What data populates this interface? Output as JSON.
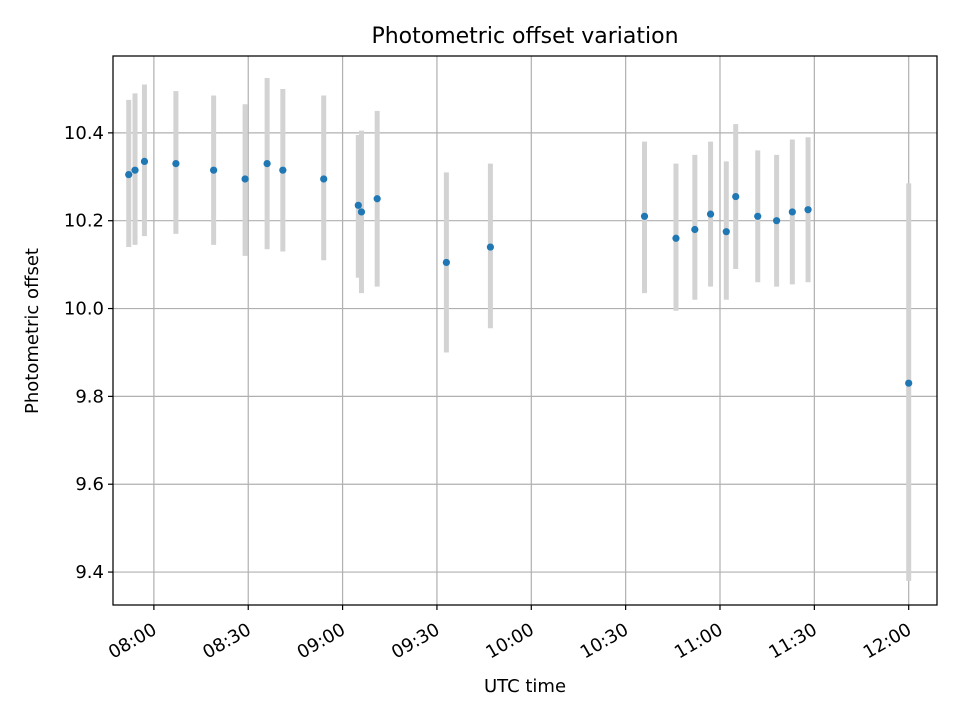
{
  "chart_data": {
    "type": "scatter",
    "title": "Photometric offset variation",
    "xlabel": "UTC time",
    "ylabel": "Photometric offset",
    "x_unit": "time of day (HH:MM, UTC)",
    "xlim": [
      "07:47",
      "12:09"
    ],
    "ylim": [
      9.325,
      10.575
    ],
    "xticks": [
      "08:00",
      "08:30",
      "09:00",
      "09:30",
      "10:00",
      "10:30",
      "11:00",
      "11:30",
      "12:00"
    ],
    "yticks": [
      "9.4",
      "9.6",
      "9.8",
      "10.0",
      "10.2",
      "10.4"
    ],
    "grid": true,
    "legend": false,
    "colors": {
      "points": "#1f77b4",
      "errorbars": "#d3d3d3",
      "grid": "#b0b0b0"
    },
    "series": [
      {
        "points": [
          {
            "x": "07:52",
            "y": 10.305,
            "ylow": 10.14,
            "yhigh": 10.475
          },
          {
            "x": "07:54",
            "y": 10.315,
            "ylow": 10.145,
            "yhigh": 10.49
          },
          {
            "x": "07:57",
            "y": 10.335,
            "ylow": 10.165,
            "yhigh": 10.51
          },
          {
            "x": "08:07",
            "y": 10.33,
            "ylow": 10.17,
            "yhigh": 10.495
          },
          {
            "x": "08:19",
            "y": 10.315,
            "ylow": 10.145,
            "yhigh": 10.485
          },
          {
            "x": "08:29",
            "y": 10.295,
            "ylow": 10.12,
            "yhigh": 10.465
          },
          {
            "x": "08:36",
            "y": 10.33,
            "ylow": 10.135,
            "yhigh": 10.525
          },
          {
            "x": "08:41",
            "y": 10.315,
            "ylow": 10.13,
            "yhigh": 10.5
          },
          {
            "x": "08:54",
            "y": 10.295,
            "ylow": 10.11,
            "yhigh": 10.485
          },
          {
            "x": "09:05",
            "y": 10.235,
            "ylow": 10.07,
            "yhigh": 10.395
          },
          {
            "x": "09:06",
            "y": 10.22,
            "ylow": 10.035,
            "yhigh": 10.405
          },
          {
            "x": "09:11",
            "y": 10.25,
            "ylow": 10.05,
            "yhigh": 10.45
          },
          {
            "x": "09:33",
            "y": 10.105,
            "ylow": 9.9,
            "yhigh": 10.31
          },
          {
            "x": "09:47",
            "y": 10.14,
            "ylow": 9.955,
            "yhigh": 10.33
          },
          {
            "x": "10:36",
            "y": 10.21,
            "ylow": 10.035,
            "yhigh": 10.38
          },
          {
            "x": "10:46",
            "y": 10.16,
            "ylow": 9.995,
            "yhigh": 10.33
          },
          {
            "x": "10:52",
            "y": 10.18,
            "ylow": 10.02,
            "yhigh": 10.35
          },
          {
            "x": "10:57",
            "y": 10.215,
            "ylow": 10.05,
            "yhigh": 10.38
          },
          {
            "x": "11:02",
            "y": 10.175,
            "ylow": 10.02,
            "yhigh": 10.335
          },
          {
            "x": "11:05",
            "y": 10.255,
            "ylow": 10.09,
            "yhigh": 10.42
          },
          {
            "x": "11:12",
            "y": 10.21,
            "ylow": 10.06,
            "yhigh": 10.36
          },
          {
            "x": "11:18",
            "y": 10.2,
            "ylow": 10.05,
            "yhigh": 10.35
          },
          {
            "x": "11:23",
            "y": 10.22,
            "ylow": 10.055,
            "yhigh": 10.385
          },
          {
            "x": "11:28",
            "y": 10.225,
            "ylow": 10.06,
            "yhigh": 10.39
          },
          {
            "x": "12:00",
            "y": 9.83,
            "ylow": 9.38,
            "yhigh": 10.285
          }
        ]
      }
    ]
  }
}
